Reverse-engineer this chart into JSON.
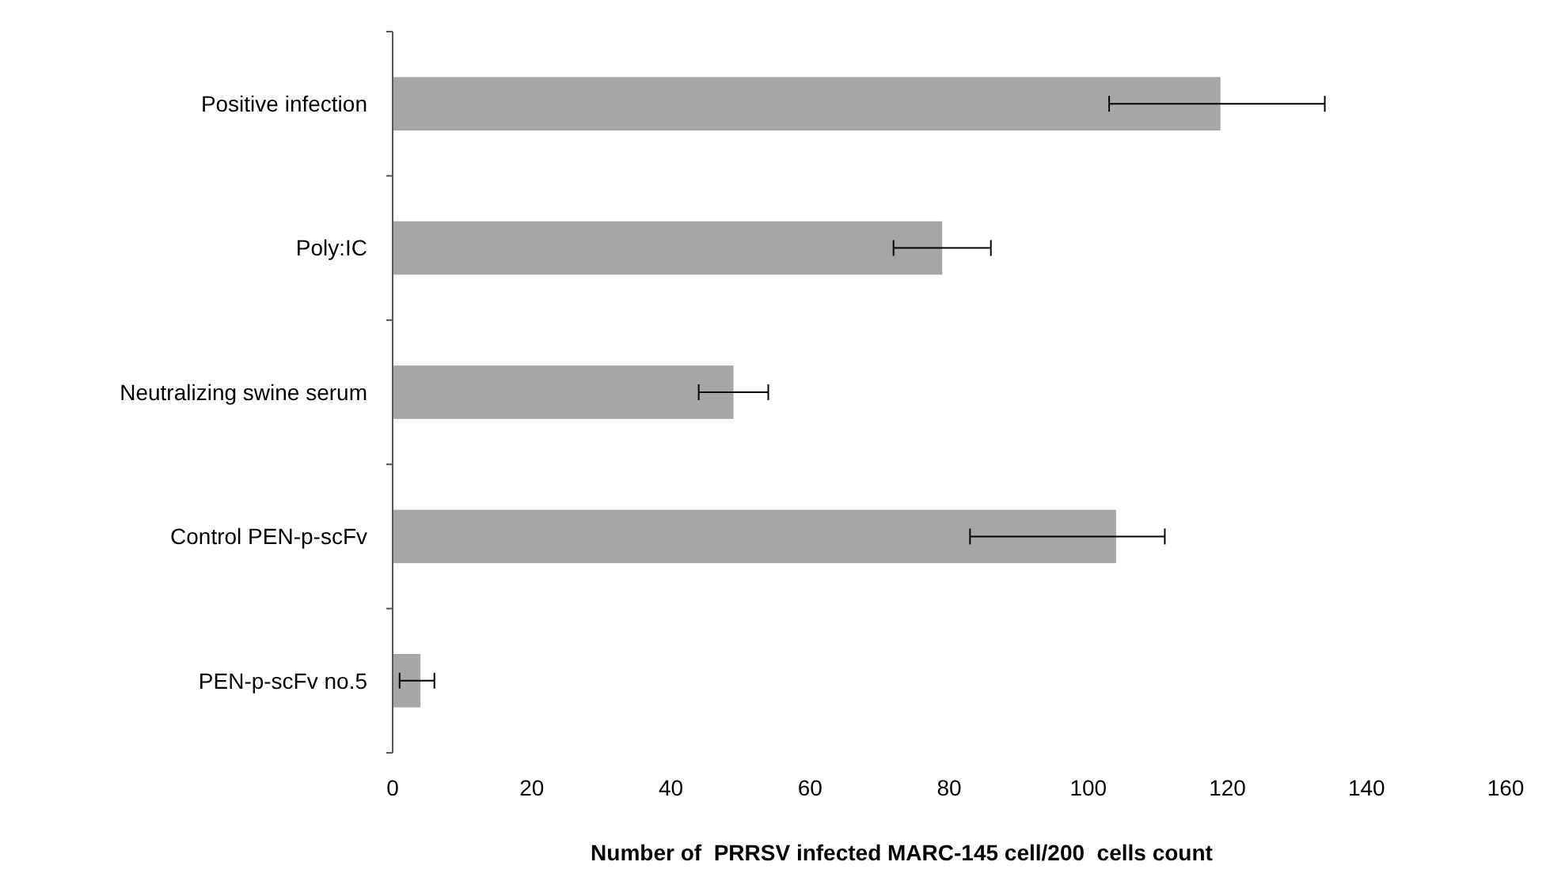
{
  "chart_data": {
    "type": "bar",
    "orientation": "horizontal",
    "categories": [
      "Positive infection",
      "Poly:IC",
      "Neutralizing swine serum",
      "Control PEN-p-scFv",
      "PEN-p-scFv no.5"
    ],
    "values": [
      119,
      79,
      49,
      104,
      4
    ],
    "errors": [
      [
        103,
        134
      ],
      [
        72,
        86
      ],
      [
        44,
        54
      ],
      [
        83,
        111
      ],
      [
        1,
        6
      ]
    ],
    "color": "#a6a6a6",
    "xlim": [
      0,
      160
    ],
    "xticks": [
      0,
      20,
      40,
      60,
      80,
      100,
      120,
      140,
      160
    ],
    "xlabel": "Number of  PRRSV infected MARC-145 cell/200  cells count",
    "grid": false
  }
}
